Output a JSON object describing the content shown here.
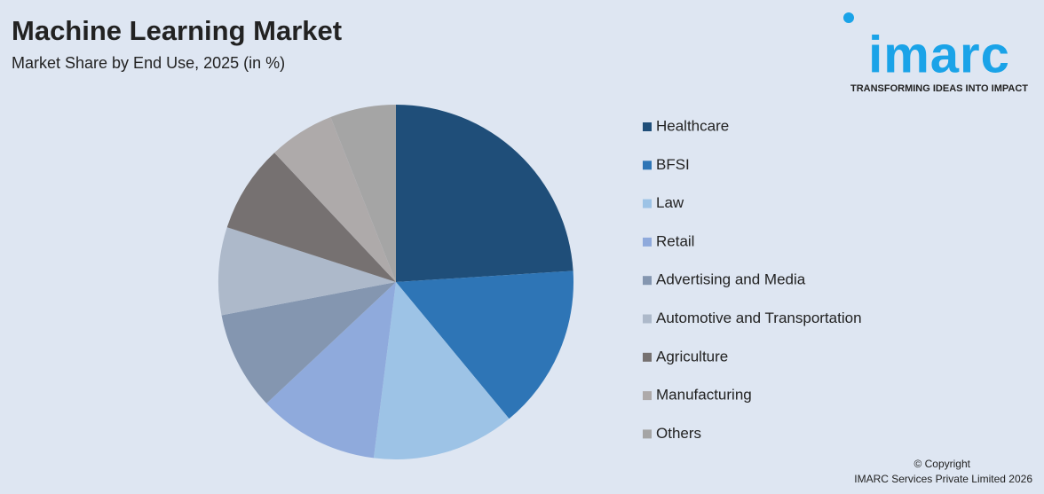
{
  "chart_data": {
    "type": "pie",
    "title": "Machine Learning Market",
    "subtitle": "Market Share by End Use, 2025 (in %)",
    "categories": [
      "Healthcare",
      "BFSI",
      "Law",
      "Retail",
      "Advertising and Media",
      "Automotive and Transportation",
      "Agriculture",
      "Manufacturing",
      "Others"
    ],
    "values": [
      24,
      15,
      13,
      11,
      9,
      8,
      8,
      6,
      6
    ],
    "colors": [
      "#1f4e79",
      "#2e75b6",
      "#9dc3e6",
      "#8faadc",
      "#8496b0",
      "#adb9ca",
      "#767171",
      "#aeaaaa",
      "#a5a5a5"
    ],
    "legend": "right"
  },
  "logo": {
    "name": "imarc",
    "tagline": "TRANSFORMING IDEAS INTO IMPACT"
  },
  "footer": {
    "copyright": "© Copyright",
    "company": "IMARC Services Private Limited 2026"
  }
}
